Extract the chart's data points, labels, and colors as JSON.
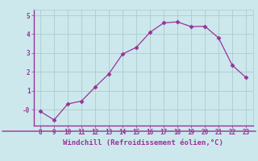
{
  "x": [
    8,
    9,
    10,
    11,
    12,
    13,
    14,
    15,
    16,
    17,
    18,
    19,
    20,
    21,
    22,
    23
  ],
  "y": [
    -0.1,
    -0.55,
    0.3,
    0.45,
    1.2,
    1.9,
    2.95,
    3.3,
    4.1,
    4.6,
    4.65,
    4.4,
    4.42,
    3.8,
    2.35,
    1.7
  ],
  "line_color": "#993399",
  "marker": "D",
  "marker_size": 2.5,
  "bg_color": "#cce8ec",
  "grid_color": "#aacccc",
  "border_color": "#993399",
  "xlabel": "Windchill (Refroidissement éolien,°C)",
  "xlabel_color": "#993399",
  "tick_color": "#993399",
  "yticks": [
    0,
    1,
    2,
    3,
    4,
    5
  ],
  "ytick_labels": [
    "-0",
    "1",
    "2",
    "3",
    "4",
    "5"
  ],
  "xticks": [
    8,
    9,
    10,
    11,
    12,
    13,
    14,
    15,
    16,
    17,
    18,
    19,
    20,
    21,
    22,
    23
  ],
  "xlim": [
    7.5,
    23.5
  ],
  "ylim": [
    -0.85,
    5.3
  ]
}
